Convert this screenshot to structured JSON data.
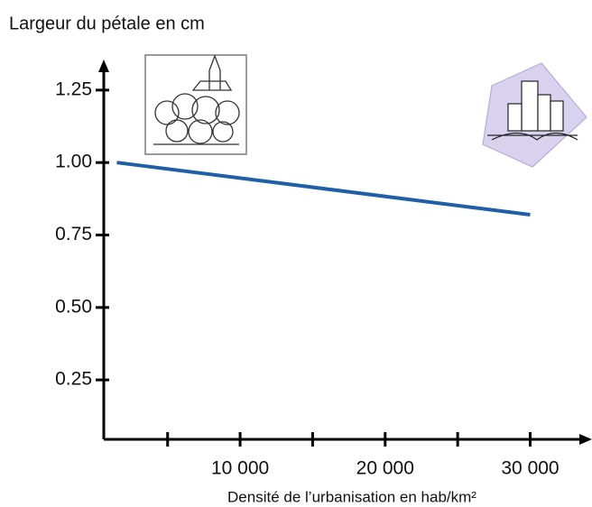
{
  "chart_data": {
    "type": "line",
    "y_label": "Largeur du pétale en cm",
    "x_label": "Densité de l’urbanisation  en hab/km²",
    "x": [
      1500,
      30000
    ],
    "series": [
      {
        "name": "Largeur",
        "color": "#1f5fa8",
        "values": [
          1.0,
          0.82
        ]
      }
    ],
    "xlim": [
      600,
      34200
    ],
    "ylim": [
      0.045,
      1.343
    ],
    "xticks": [
      {
        "value": 10000,
        "label": "10 000"
      },
      {
        "value": 20000,
        "label": "20 000"
      },
      {
        "value": 30000,
        "label": "30 000"
      }
    ],
    "xticks_minor": [
      5000,
      15000,
      25000
    ],
    "yticks": [
      0.25,
      {
        "value": 0.5,
        "label": "0.50"
      },
      0.75,
      {
        "value": 1,
        "label": "1.00"
      },
      1.25
    ],
    "grid": false
  }
}
